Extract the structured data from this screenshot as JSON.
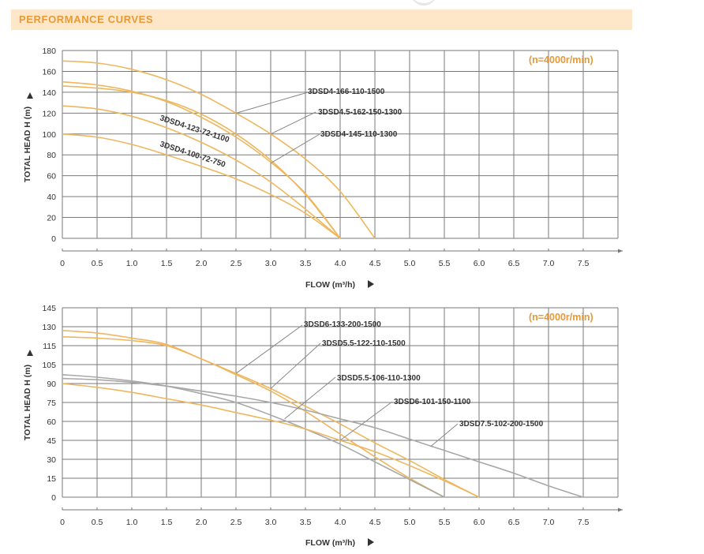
{
  "header": {
    "title": "PERFORMANCE CURVES"
  },
  "colors": {
    "accent": "#e79a35",
    "header_bg": "#fde7c8",
    "orange_curve": "#eeb75e",
    "gray_curve": "#a8a8a8",
    "grid": "#7a7a7a"
  },
  "chart_data": [
    {
      "type": "line",
      "speed_note": "(n=4000r/min)",
      "xlabel": "FLOW (m³/h)",
      "ylabel": "TOTAL HEAD H (m)",
      "xlim": [
        0,
        8
      ],
      "ylim": [
        0,
        180
      ],
      "x_ticks": [
        "0",
        "0.5",
        "1.0",
        "1.5",
        "2.0",
        "2.5",
        "3.0",
        "3.5",
        "4.0",
        "4.5",
        "5.0",
        "5.5",
        "6.0",
        "6.5",
        "7.0",
        "7.5"
      ],
      "y_ticks": [
        "0",
        "20",
        "40",
        "60",
        "80",
        "100",
        "120",
        "140",
        "160",
        "180"
      ],
      "grid": true,
      "series": [
        {
          "name": "3DSD4-166-110-1500",
          "color": "orange",
          "x": [
            0,
            0.5,
            1.0,
            1.5,
            2.0,
            2.5,
            3.0,
            3.5,
            4.0,
            4.5
          ],
          "y": [
            170,
            168,
            162,
            152,
            138,
            120,
            100,
            76,
            45,
            0
          ]
        },
        {
          "name": "3DSD4.5-162-150-1300",
          "color": "orange",
          "x": [
            0,
            0.5,
            1.0,
            1.5,
            2.0,
            2.5,
            3.0,
            3.5,
            4.0
          ],
          "y": [
            150,
            147,
            141,
            131,
            116,
            97,
            73,
            43,
            0
          ]
        },
        {
          "name": "3DSD4-145-110-1300",
          "color": "orange",
          "x": [
            0,
            0.5,
            1.0,
            1.5,
            2.0,
            2.5,
            3.0,
            3.5,
            4.0
          ],
          "y": [
            146,
            144,
            140,
            132,
            119,
            100,
            75,
            42,
            0
          ]
        },
        {
          "name": "3DSD4-123-72-1100",
          "color": "orange",
          "x": [
            0,
            0.5,
            1.0,
            1.5,
            2.0,
            2.5,
            3.0,
            3.5,
            4.0
          ],
          "y": [
            127,
            124,
            117,
            106,
            92,
            75,
            54,
            28,
            0
          ]
        },
        {
          "name": "3DSD4-100-72-750",
          "color": "orange",
          "x": [
            0,
            0.5,
            1.0,
            1.5,
            2.0,
            2.5,
            3.0,
            3.5,
            4.0
          ],
          "y": [
            100,
            97,
            90,
            80,
            69,
            57,
            42,
            24,
            0
          ]
        }
      ],
      "annotations": [
        {
          "text": "3DSD4-166-110-1500",
          "points_to": [
            2.5,
            120
          ]
        },
        {
          "text": "3DSD4.5-162-150-1300",
          "points_to": [
            3.0,
            100
          ]
        },
        {
          "text": "3DSD4-145-110-1300",
          "points_to": [
            3.0,
            72
          ]
        },
        {
          "text": "3DSD4-123-72-1100",
          "points_to": null
        },
        {
          "text": "3DSD4-100-72-750",
          "points_to": null
        }
      ]
    },
    {
      "type": "line",
      "speed_note": "(n=4000r/min)",
      "xlabel": "FLOW (m³/h)",
      "ylabel": "TOTAL HEAD H (m)",
      "xlim": [
        0,
        8
      ],
      "ylim": [
        0,
        145
      ],
      "x_ticks": [
        "0",
        "0.5",
        "1.0",
        "1.5",
        "2.0",
        "2.5",
        "3.0",
        "3.5",
        "4.0",
        "4.5",
        "5.0",
        "5.5",
        "6.0",
        "6.5",
        "7.0",
        "7.5"
      ],
      "y_ticks": [
        "0",
        "15",
        "30",
        "45",
        "60",
        "75",
        "90",
        "105",
        "115",
        "130",
        "145"
      ],
      "y_tick_values": [
        0,
        15,
        30,
        45,
        60,
        75,
        90,
        105,
        115,
        130,
        145
      ],
      "grid": true,
      "series": [
        {
          "name": "3DSD6-133-200-1500",
          "color": "orange",
          "x": [
            0,
            0.5,
            1.0,
            1.5,
            2.0,
            2.5,
            3.0,
            3.5,
            4.0,
            4.5,
            5.0,
            5.5,
            6.0
          ],
          "y": [
            127,
            125,
            121,
            116,
            108,
            98,
            86,
            72,
            58,
            43,
            29,
            14,
            0
          ]
        },
        {
          "name": "3DSD5.5-122-110-1500",
          "color": "orange",
          "x": [
            0,
            0.5,
            1.0,
            1.5,
            2.0,
            2.5,
            3.0,
            3.5,
            4.0,
            4.5,
            5.0,
            5.5
          ],
          "y": [
            122,
            121,
            119,
            115,
            108,
            97,
            84,
            68,
            50,
            32,
            15,
            0
          ]
        },
        {
          "name": "3DSD5.5-106-110-1300",
          "color": "gray",
          "x": [
            0,
            0.5,
            1.0,
            1.5,
            2.0,
            2.5,
            3.0,
            3.5,
            4.0,
            4.5,
            5.0,
            5.5
          ],
          "y": [
            97,
            95,
            92,
            88,
            82,
            75,
            65,
            54,
            42,
            28,
            14,
            0
          ]
        },
        {
          "name": "3DSD6-101-150-1100",
          "color": "orange",
          "x": [
            0,
            0.5,
            1.0,
            1.5,
            2.0,
            2.5,
            3.0,
            3.5,
            4.0,
            4.5,
            5.0,
            5.5,
            6.0
          ],
          "y": [
            90,
            87,
            83,
            78,
            73,
            67,
            61,
            54,
            45,
            36,
            25,
            13,
            0
          ]
        },
        {
          "name": "3DSD7.5-102-200-1500",
          "color": "gray",
          "x": [
            0,
            0.5,
            1.0,
            1.5,
            2.0,
            2.5,
            3.0,
            3.5,
            4.0,
            4.5,
            5.0,
            5.5,
            6.0,
            6.5,
            7.0,
            7.5
          ],
          "y": [
            94,
            93,
            91,
            88,
            84,
            80,
            75,
            69,
            62,
            55,
            46,
            37,
            28,
            19,
            9,
            0
          ]
        }
      ],
      "annotations": [
        {
          "text": "3DSD6-133-200-1500",
          "points_to": [
            2.5,
            98
          ]
        },
        {
          "text": "3DSD5.5-122-110-1500",
          "points_to": [
            3.0,
            86
          ]
        },
        {
          "text": "3DSD5.5-106-110-1300",
          "points_to": [
            3.2,
            62
          ]
        },
        {
          "text": "3DSD6-101-150-1100",
          "points_to": [
            4.0,
            45
          ]
        },
        {
          "text": "3DSD7.5-102-200-1500",
          "points_to": [
            5.3,
            40
          ]
        }
      ]
    }
  ]
}
